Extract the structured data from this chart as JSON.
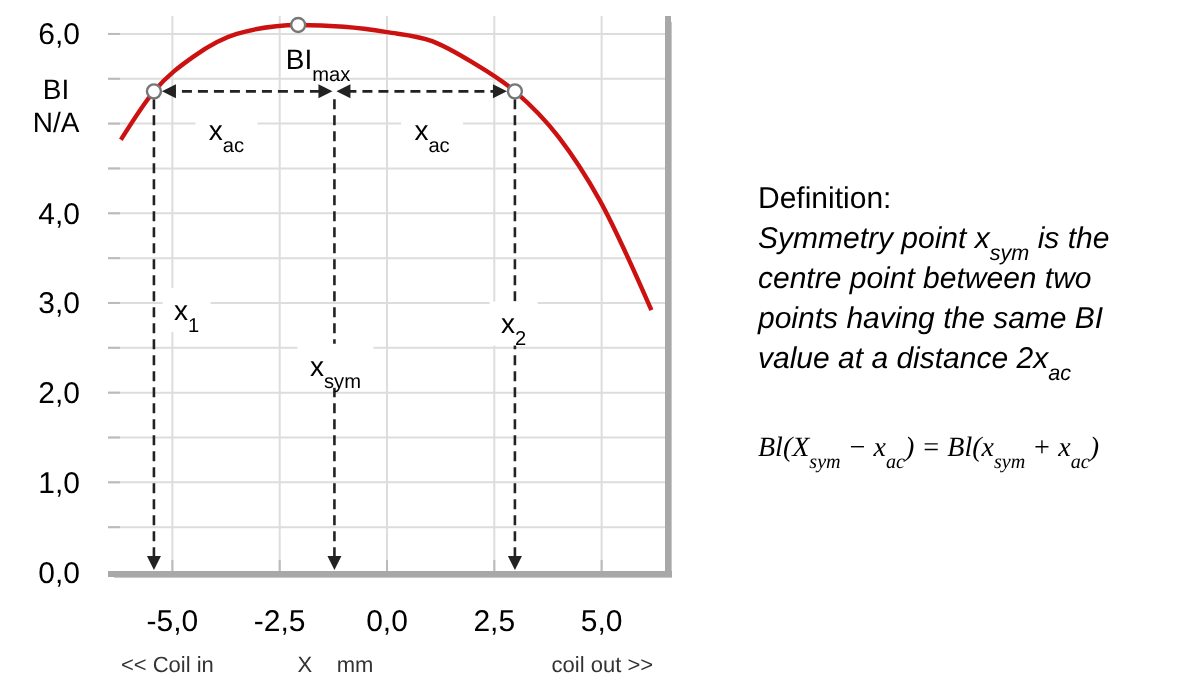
{
  "chart_data": {
    "type": "line",
    "ylabel": "BI N/A",
    "xlabel": "X    mm",
    "xlim": [
      -6.5,
      6.5
    ],
    "ylim": [
      0,
      6.2
    ],
    "xticks": [
      {
        "value": -5,
        "label": "-5,0"
      },
      {
        "value": -2.5,
        "label": "-2,5"
      },
      {
        "value": 0,
        "label": "0,0"
      },
      {
        "value": 2.5,
        "label": "2,5"
      },
      {
        "value": 5,
        "label": "5,0"
      }
    ],
    "yticks": [
      {
        "value": 0,
        "label": "0,0"
      },
      {
        "value": 0.5,
        "label": null
      },
      {
        "value": 1,
        "label": "1,0"
      },
      {
        "value": 1.5,
        "label": null
      },
      {
        "value": 2,
        "label": "2,0"
      },
      {
        "value": 2.5,
        "label": null
      },
      {
        "value": 3,
        "label": "3,0"
      },
      {
        "value": 3.5,
        "label": null
      },
      {
        "value": 4,
        "label": "4,0"
      },
      {
        "value": 4.5,
        "label": null
      },
      {
        "value": 5,
        "label": null
      },
      {
        "value": 5.5,
        "label": null
      },
      {
        "value": 6,
        "label": "6,0"
      }
    ],
    "grid": true,
    "series": [
      {
        "color": "#cc1111",
        "marker": "none",
        "x": [
          -6.2,
          -5.43,
          -4.5,
          -3.5,
          -2.07,
          -1,
          0,
          1.05,
          2,
          2.98,
          4,
          4.95,
          6.16
        ],
        "values": [
          4.82,
          5.36,
          5.75,
          6.0,
          6.1,
          6.08,
          6.02,
          5.92,
          5.68,
          5.36,
          4.85,
          4.15,
          2.92
        ]
      },
      {
        "type": "scatter",
        "color": "#777777",
        "marker": "circle",
        "x": [
          -5.43,
          -2.07,
          2.98
        ],
        "values": [
          5.36,
          6.1,
          5.36
        ]
      }
    ],
    "annotations": [
      {
        "text": "BI$_{max}$",
        "x": -2.07,
        "y": 6.1
      },
      {
        "text": "x$_{ac}$",
        "x": -3.74,
        "y": 4.93
      },
      {
        "text": "x$_{ac}$",
        "x": 1.05,
        "y": 4.93
      },
      {
        "text": "x$_{1}$",
        "x": -4.67,
        "y": 2.92
      },
      {
        "text": "x$_{sym}$",
        "x": -1.2,
        "y": 2.3
      },
      {
        "text": "x$_{2}$",
        "x": 2.95,
        "y": 2.77
      },
      "<< Coil in",
      "coil out >>",
      "Definition:",
      "Symmetry point x$_{sym}$ is the centre point between two points having the same BI value at a distance 2x$_{ac}$",
      "Bl(X$_{sym}$ − x$_{ac}$) = Bl(x$_{sym}$ + x$_{ac}$)"
    ]
  }
}
